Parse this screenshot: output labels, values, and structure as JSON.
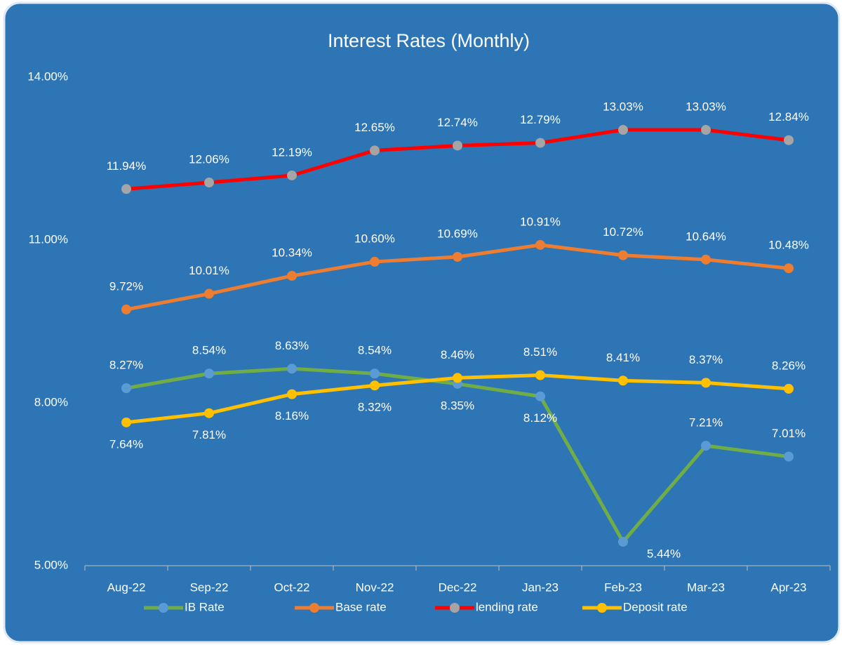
{
  "chart_data": {
    "type": "line",
    "title": "Interest Rates (Monthly)",
    "categories": [
      "Aug-22",
      "Sep-22",
      "Oct-22",
      "Nov-22",
      "Dec-22",
      "Jan-23",
      "Feb-23",
      "Mar-23",
      "Apr-23"
    ],
    "ylim": [
      5,
      14
    ],
    "yticks": [
      {
        "value": 5,
        "label": "5.00%"
      },
      {
        "value": 8,
        "label": "8.00%"
      },
      {
        "value": 11,
        "label": "11.00%"
      },
      {
        "value": 14,
        "label": "14.00%"
      }
    ],
    "grid": false,
    "legend": "bottom",
    "series": [
      {
        "name": "IB Rate",
        "color": "#70ad47",
        "marker_color": "#5b9bd5",
        "values": [
          8.27,
          8.54,
          8.63,
          8.54,
          8.35,
          8.12,
          5.44,
          7.21,
          7.01
        ],
        "value_labels": [
          "8.27%",
          "8.54%",
          "8.63%",
          "8.54%",
          "8.35%",
          "8.12%",
          "5.44%",
          "7.21%",
          "7.01%"
        ]
      },
      {
        "name": "Base rate",
        "color": "#ed7d31",
        "marker_color": "#ed7d31",
        "values": [
          9.72,
          10.01,
          10.34,
          10.6,
          10.69,
          10.91,
          10.72,
          10.64,
          10.48
        ],
        "value_labels": [
          "9.72%",
          "10.01%",
          "10.34%",
          "10.60%",
          "10.69%",
          "10.91%",
          "10.72%",
          "10.64%",
          "10.48%"
        ]
      },
      {
        "name": "lending rate",
        "color": "#ff0000",
        "marker_color": "#a5a5a5",
        "values": [
          11.94,
          12.06,
          12.19,
          12.65,
          12.74,
          12.79,
          13.03,
          13.03,
          12.84
        ],
        "value_labels": [
          "11.94%",
          "12.06%",
          "12.19%",
          "12.65%",
          "12.74%",
          "12.79%",
          "13.03%",
          "13.03%",
          "12.84%"
        ]
      },
      {
        "name": "Deposit rate",
        "color": "#ffc000",
        "marker_color": "#ffc000",
        "values": [
          7.64,
          7.81,
          8.16,
          8.32,
          8.46,
          8.51,
          8.41,
          8.37,
          8.26
        ],
        "value_labels": [
          "7.64%",
          "7.81%",
          "8.16%",
          "8.32%",
          "8.46%",
          "8.51%",
          "8.41%",
          "8.37%",
          "8.26%"
        ]
      }
    ]
  }
}
